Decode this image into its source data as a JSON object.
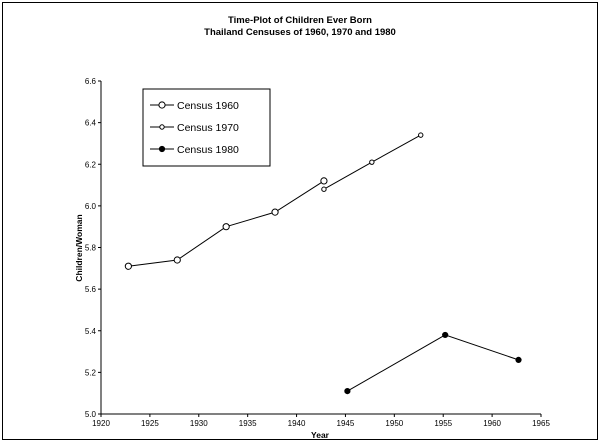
{
  "chart_data": {
    "type": "line",
    "title": "Time-Plot of Children Ever Born",
    "subtitle": "Thailand Censuses of 1960, 1970 and 1980",
    "xlabel": "Year",
    "ylabel": "Children/Woman",
    "xlim": [
      1920,
      1965
    ],
    "ylim": [
      5.0,
      6.6
    ],
    "xticks": [
      "1920",
      "1925",
      "1930",
      "1935",
      "1940",
      "1945",
      "1950",
      "1955",
      "1960",
      "1965"
    ],
    "yticks": [
      "5.0",
      "5.2",
      "5.4",
      "5.6",
      "5.8",
      "6.0",
      "6.2",
      "6.4",
      "6.6"
    ],
    "grid": false,
    "legend_position": "top-left",
    "series": [
      {
        "name": "Census 1960",
        "marker": "open-circle-large",
        "x": [
          1922.8,
          1927.8,
          1932.8,
          1937.8,
          1942.8
        ],
        "y": [
          5.71,
          5.74,
          5.9,
          5.97,
          6.12
        ]
      },
      {
        "name": "Census 1970",
        "marker": "open-circle-small",
        "x": [
          1942.8,
          1947.7,
          1952.7
        ],
        "y": [
          6.08,
          6.21,
          6.34
        ]
      },
      {
        "name": "Census 1980",
        "marker": "filled-circle",
        "x": [
          1945.2,
          1955.2,
          1962.7
        ],
        "y": [
          5.11,
          5.38,
          5.26
        ]
      }
    ]
  }
}
